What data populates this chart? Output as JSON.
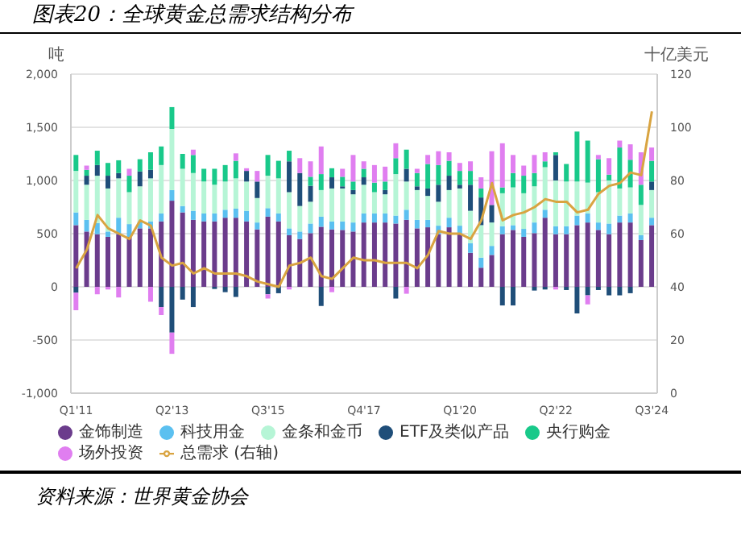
{
  "chart_data": {
    "type": "bar",
    "title": "图表20：全球黄金总需求结构分布",
    "ylabel": "吨",
    "y2label": "十亿美元",
    "categories": [
      "Q1'11",
      null,
      null,
      null,
      null,
      null,
      null,
      null,
      null,
      "Q2'13",
      null,
      null,
      null,
      null,
      null,
      null,
      null,
      null,
      "Q3'15",
      null,
      null,
      null,
      null,
      null,
      null,
      null,
      null,
      "Q4'17",
      null,
      null,
      null,
      null,
      null,
      null,
      null,
      null,
      "Q1'20",
      null,
      null,
      null,
      null,
      null,
      null,
      null,
      null,
      "Q2'22",
      null,
      null,
      null,
      null,
      null,
      null,
      null,
      null,
      "Q3'24"
    ],
    "stacked": true,
    "grid": "y",
    "legend": "bottom",
    "marker": "none",
    "ylim": [
      -1000,
      2000
    ],
    "yticks": [
      {
        "value": -1000,
        "label": "-1,000"
      },
      -500,
      0,
      500,
      {
        "value": 1000,
        "label": "1,000"
      },
      {
        "value": 1500,
        "label": "1,500"
      },
      {
        "value": 2000,
        "label": "2,000"
      }
    ],
    "y2lim": [
      0,
      120
    ],
    "y2ticks": [
      0,
      20,
      40,
      60,
      80,
      100,
      120
    ],
    "series": [
      {
        "name": "金饰制造",
        "color": "#6b3c8c",
        "values": [
          580,
          520,
          495,
          470,
          495,
          470,
          550,
          550,
          615,
          810,
          700,
          630,
          615,
          615,
          650,
          650,
          615,
          540,
          660,
          615,
          485,
          450,
          505,
          565,
          540,
          535,
          520,
          605,
          605,
          605,
          595,
          630,
          550,
          560,
          495,
          560,
          495,
          320,
          180,
          300,
          495,
          535,
          470,
          505,
          650,
          495,
          495,
          580,
          605,
          535,
          495,
          605,
          605,
          440,
          580
        ]
      },
      {
        "name": "科技用金",
        "color": "#5bc0f0",
        "values": [
          120,
          110,
          105,
          50,
          155,
          120,
          65,
          65,
          75,
          100,
          60,
          85,
          75,
          75,
          75,
          85,
          100,
          65,
          80,
          75,
          65,
          70,
          90,
          95,
          75,
          80,
          85,
          85,
          85,
          85,
          75,
          95,
          80,
          70,
          80,
          90,
          80,
          90,
          95,
          85,
          75,
          45,
          75,
          100,
          75,
          75,
          75,
          90,
          85,
          70,
          100,
          65,
          85,
          45,
          70
        ]
      },
      {
        "name": "金条和金币",
        "color": "#b6f5d6",
        "values": [
          390,
          330,
          445,
          405,
          370,
          300,
          330,
          405,
          455,
          575,
          350,
          355,
          300,
          270,
          265,
          285,
          275,
          230,
          305,
          330,
          340,
          240,
          205,
          250,
          310,
          310,
          265,
          270,
          200,
          180,
          390,
          265,
          280,
          225,
          225,
          260,
          350,
          305,
          305,
          220,
          310,
          355,
          335,
          340,
          400,
          430,
          420,
          320,
          290,
          285,
          405,
          255,
          245,
          285,
          260
        ]
      },
      {
        "name": "ETF及类似产品",
        "color": "#1f4e79",
        "values": [
          -55,
          85,
          100,
          120,
          50,
          0,
          140,
          80,
          -190,
          -430,
          -120,
          -190,
          0,
          -20,
          -50,
          -95,
          100,
          155,
          -70,
          -60,
          290,
          310,
          150,
          -180,
          105,
          20,
          40,
          70,
          0,
          40,
          -110,
          120,
          35,
          70,
          160,
          135,
          35,
          245,
          260,
          165,
          -175,
          -175,
          0,
          -35,
          -25,
          240,
          -30,
          -250,
          -80,
          -30,
          -80,
          -80,
          -60,
          0,
          80
        ]
      },
      {
        "name": "央行购金",
        "color": "#19c98a",
        "values": [
          150,
          55,
          135,
          120,
          120,
          155,
          115,
          165,
          175,
          205,
          140,
          170,
          120,
          150,
          155,
          165,
          0,
          0,
          195,
          165,
          100,
          0,
          85,
          150,
          85,
          90,
          80,
          80,
          90,
          80,
          150,
          180,
          125,
          230,
          185,
          140,
          130,
          130,
          85,
          0,
          55,
          135,
          165,
          125,
          55,
          25,
          165,
          470,
          395,
          310,
          55,
          385,
          260,
          190,
          195
        ]
      },
      {
        "name": "场外投资",
        "color": "#e07ef0",
        "values": [
          -165,
          40,
          -70,
          -25,
          -100,
          65,
          0,
          -140,
          -75,
          -200,
          0,
          50,
          0,
          0,
          0,
          70,
          25,
          100,
          -40,
          0,
          -25,
          140,
          145,
          260,
          -50,
          75,
          250,
          70,
          165,
          140,
          140,
          -65,
          40,
          85,
          130,
          80,
          75,
          90,
          105,
          505,
          415,
          170,
          95,
          170,
          85,
          -25,
          0,
          0,
          -85,
          40,
          155,
          65,
          145,
          305,
          125
        ]
      },
      {
        "name": "总需求 (右轴)",
        "type": "line",
        "axis": "y2",
        "color": "#d9a441",
        "values": [
          47,
          54,
          67,
          62,
          60,
          58,
          65,
          63,
          51,
          48,
          49,
          45,
          47,
          45,
          45,
          45,
          44,
          42,
          41,
          40,
          48,
          49,
          51,
          44,
          43,
          47,
          51,
          50,
          50,
          49,
          49,
          49,
          47,
          52,
          61,
          60,
          60,
          58,
          65,
          79,
          65,
          67,
          68,
          70,
          73,
          72,
          72,
          68,
          69,
          75,
          78,
          79,
          83,
          82,
          106
        ]
      }
    ],
    "annotations": [
      "资料来源：世界黄金协会"
    ]
  }
}
